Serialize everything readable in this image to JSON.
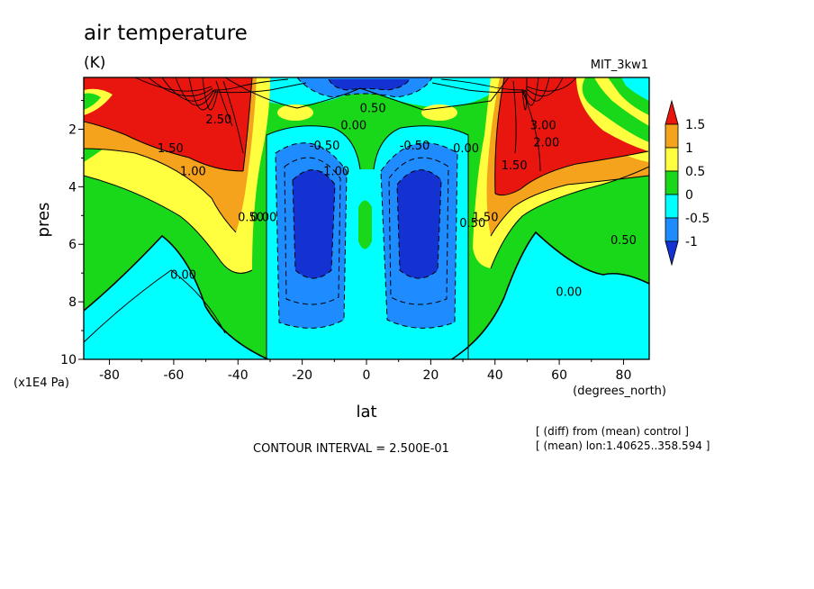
{
  "chart_data": {
    "type": "heatmap",
    "title": "air temperature",
    "units": "(K)",
    "model": "MIT_3kw1",
    "xlabel": "lat",
    "x_units": "(degrees_north)",
    "ylabel": "pres",
    "y_units": "(x1E4 Pa)",
    "xlim": [
      -88,
      88
    ],
    "ylim": [
      10,
      0.2
    ],
    "x_ticks": [
      "-80",
      "-60",
      "-40",
      "-20",
      "0",
      "20",
      "40",
      "60",
      "80"
    ],
    "x_tick_values": [
      -80,
      -60,
      -40,
      -20,
      0,
      20,
      40,
      60,
      80
    ],
    "y_ticks": [
      "2",
      "4",
      "6",
      "8",
      "10"
    ],
    "y_tick_values": [
      2,
      4,
      6,
      8,
      10
    ],
    "contour_interval_text": "CONTOUR INTERVAL = 2.500E-01",
    "notes": [
      "[ (diff) from (mean) control ]",
      "[ (mean) lon:1.40625..358.594 ]"
    ],
    "colorbar": {
      "levels": [
        "1.5",
        "1",
        "0.5",
        "0",
        "-0.5",
        "-1"
      ],
      "colors": [
        "#e8160f",
        "#f5a31c",
        "#ffff40",
        "#19d719",
        "#00ffff",
        "#1e8cff",
        "#1432d2"
      ]
    },
    "contour_labels": [
      {
        "text": "1.50",
        "lat": -61,
        "p": 2.8
      },
      {
        "text": "1.00",
        "lat": -54,
        "p": 3.6
      },
      {
        "text": "2.50",
        "lat": -46,
        "p": 1.8
      },
      {
        "text": "0.50",
        "lat": -36,
        "p": 5.2
      },
      {
        "text": "0.00",
        "lat": -32,
        "p": 5.2
      },
      {
        "text": "0.00",
        "lat": -57,
        "p": 7.2
      },
      {
        "text": "0.00",
        "lat": -4,
        "p": 2.0
      },
      {
        "text": "0.50",
        "lat": 2,
        "p": 1.4
      },
      {
        "text": "-0.50",
        "lat": -13,
        "p": 2.7
      },
      {
        "text": "-1.00",
        "lat": -10,
        "p": 3.6
      },
      {
        "text": "-0.50",
        "lat": 15,
        "p": 2.7
      },
      {
        "text": "0.00",
        "lat": 31,
        "p": 2.8
      },
      {
        "text": "0.50",
        "lat": 33,
        "p": 5.4
      },
      {
        "text": "1.50",
        "lat": 37,
        "p": 5.2
      },
      {
        "text": "1.50",
        "lat": 46,
        "p": 3.4
      },
      {
        "text": "2.00",
        "lat": 56,
        "p": 2.6
      },
      {
        "text": "3.00",
        "lat": 55,
        "p": 2.0
      },
      {
        "text": "0.50",
        "lat": 80,
        "p": 6.0
      },
      {
        "text": "0.00",
        "lat": 63,
        "p": 7.8
      }
    ]
  }
}
